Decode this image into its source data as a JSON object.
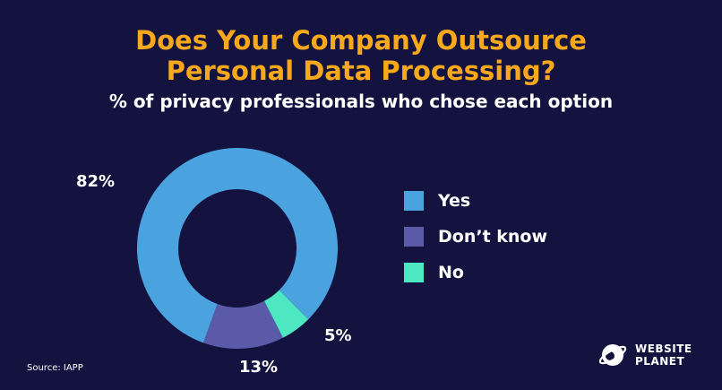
{
  "chart_data": {
    "type": "donut",
    "title": "Does Your Company Outsource Personal Data Processing?",
    "subtitle": "% of privacy professionals who chose each option",
    "slices": [
      {
        "label": "Yes",
        "value": 82,
        "value_label": "82%",
        "color": "#4aa3df"
      },
      {
        "label": "Don’t know",
        "value": 13,
        "value_label": "13%",
        "color": "#5a5aa8"
      },
      {
        "label": "No",
        "value": 5,
        "value_label": "5%",
        "color": "#4de8c2"
      }
    ]
  },
  "title_lines": [
    "Does Your Company Outsource",
    "Personal Data Processing?"
  ],
  "source": "Source: IAPP",
  "logo": {
    "line1": "WEBSITE",
    "line2": "PLANET"
  },
  "colors": {
    "background": "#14123f",
    "title": "#f7a81b",
    "text": "#ffffff"
  }
}
